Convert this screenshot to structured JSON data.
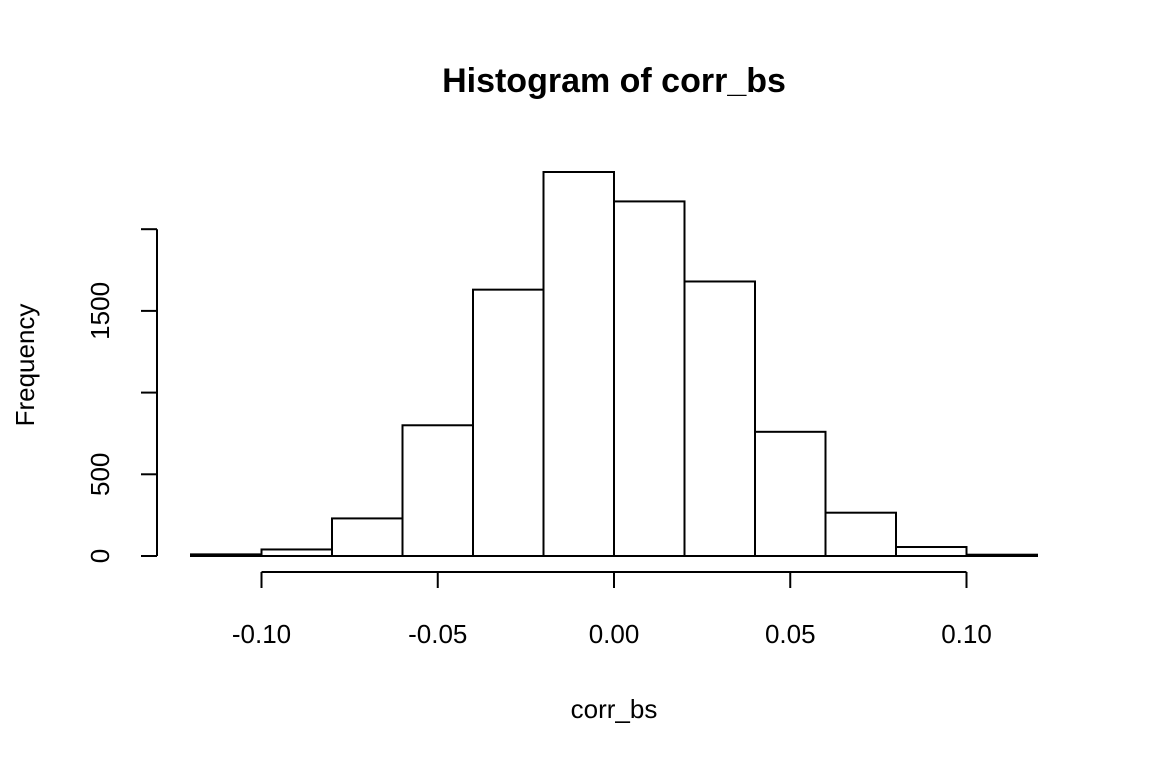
{
  "chart_data": {
    "type": "bar",
    "title": "Histogram of corr_bs",
    "xlabel": "corr_bs",
    "ylabel": "Frequency",
    "bins": [
      {
        "from": -0.12,
        "to": -0.1,
        "count": 10
      },
      {
        "from": -0.1,
        "to": -0.08,
        "count": 40
      },
      {
        "from": -0.08,
        "to": -0.06,
        "count": 230
      },
      {
        "from": -0.06,
        "to": -0.04,
        "count": 800
      },
      {
        "from": -0.04,
        "to": -0.02,
        "count": 1630
      },
      {
        "from": -0.02,
        "to": 0.0,
        "count": 2350
      },
      {
        "from": 0.0,
        "to": 0.02,
        "count": 2170
      },
      {
        "from": 0.02,
        "to": 0.04,
        "count": 1680
      },
      {
        "from": 0.04,
        "to": 0.06,
        "count": 760
      },
      {
        "from": 0.06,
        "to": 0.08,
        "count": 265
      },
      {
        "from": 0.08,
        "to": 0.1,
        "count": 55
      },
      {
        "from": 0.1,
        "to": 0.12,
        "count": 8
      }
    ],
    "xlim": [
      -0.12,
      0.12
    ],
    "ylim": [
      0,
      2350
    ],
    "x_ticks": [
      -0.1,
      -0.05,
      0.0,
      0.05,
      0.1
    ],
    "x_tick_labels": [
      "-0.10",
      "-0.05",
      "0.00",
      "0.05",
      "0.10"
    ],
    "y_ticks": [
      0,
      500,
      1000,
      1500,
      2000
    ],
    "y_tick_labels": [
      "0",
      "500",
      "",
      "1500",
      ""
    ],
    "grid": false
  }
}
